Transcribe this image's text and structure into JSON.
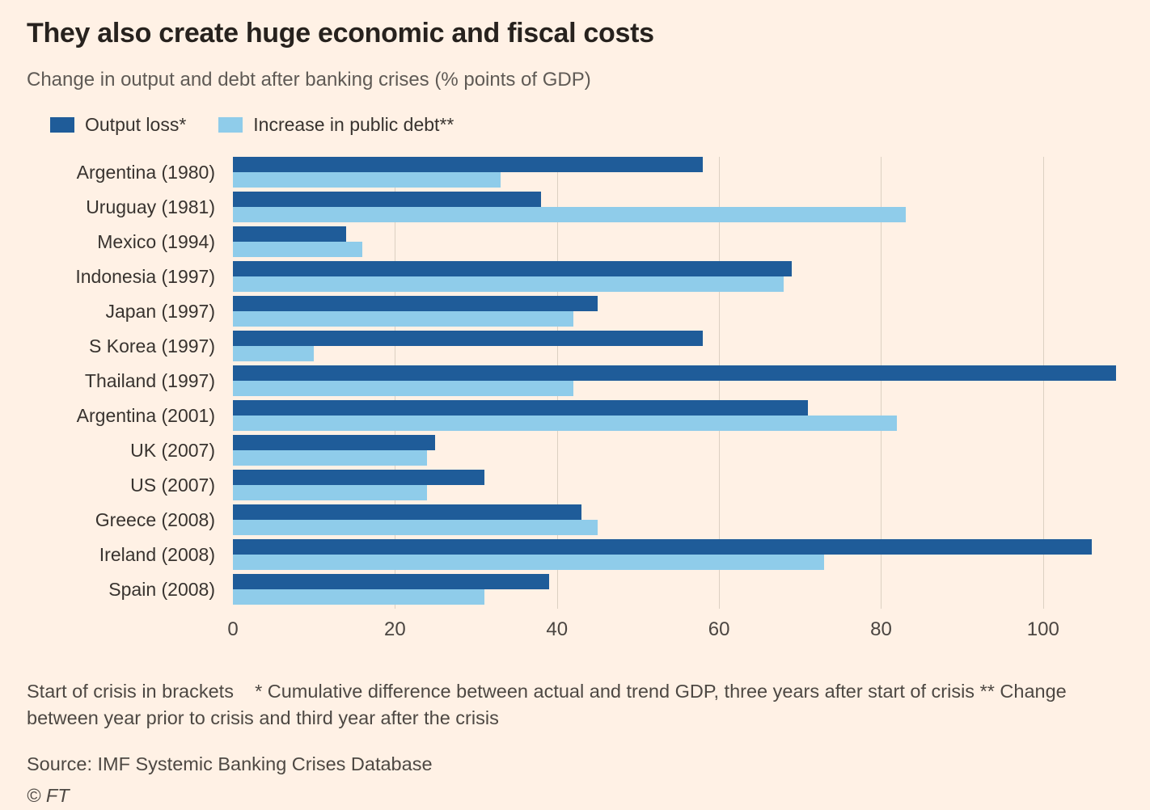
{
  "header": {
    "title": "They also create huge economic and fiscal costs",
    "subtitle": "Change in output and debt after banking crises (% points of GDP)"
  },
  "legend": {
    "items": [
      {
        "label": "Output loss*",
        "color": "#1f5c99"
      },
      {
        "label": "Increase in public debt**",
        "color": "#8fccea"
      }
    ]
  },
  "chart_data": {
    "type": "bar",
    "orientation": "horizontal",
    "title": "They also create huge economic and fiscal costs",
    "subtitle": "Change in output and debt after banking crises (% points of GDP)",
    "xlabel": "",
    "ylabel": "",
    "xlim": [
      0,
      110
    ],
    "xticks": [
      0,
      20,
      40,
      60,
      80,
      100
    ],
    "grid": true,
    "legend_position": "top",
    "categories": [
      "Argentina (1980)",
      "Uruguay (1981)",
      "Mexico (1994)",
      "Indonesia (1997)",
      "Japan (1997)",
      "S Korea (1997)",
      "Thailand (1997)",
      "Argentina (2001)",
      "UK (2007)",
      "US (2007)",
      "Greece (2008)",
      "Ireland (2008)",
      "Spain (2008)"
    ],
    "series": [
      {
        "name": "Output loss*",
        "color": "#1f5c99",
        "values": [
          58,
          38,
          14,
          69,
          45,
          58,
          109,
          71,
          25,
          31,
          43,
          106,
          39
        ]
      },
      {
        "name": "Increase in public debt**",
        "color": "#8fccea",
        "values": [
          33,
          83,
          16,
          68,
          42,
          10,
          42,
          82,
          24,
          24,
          45,
          73,
          31
        ]
      }
    ]
  },
  "footer": {
    "note": "Start of crisis in brackets    * Cumulative difference between actual and trend GDP, three years after start of crisis ** Change between year prior to crisis and third year after the crisis",
    "source": "Source: IMF Systemic Banking Crises Database",
    "copyright": "© FT"
  }
}
